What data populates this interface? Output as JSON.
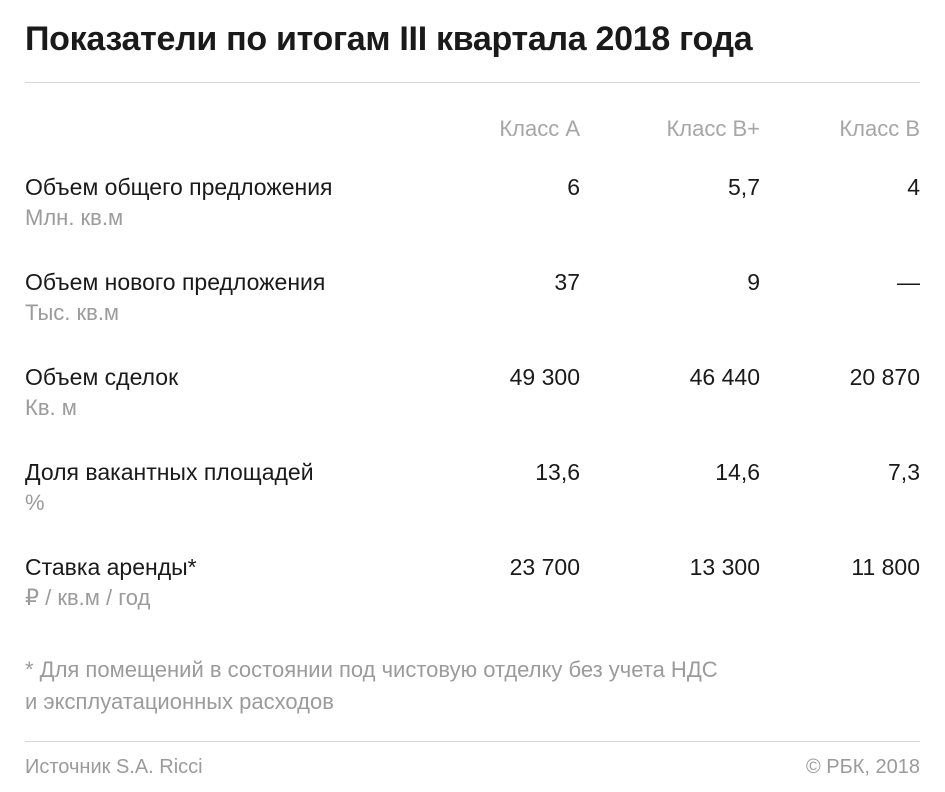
{
  "title": "Показатели по итогам III квартала 2018 года",
  "chart_data": {
    "type": "table",
    "title": "Показатели по итогам III квартала 2018 года",
    "columns": [
      "Класс А",
      "Класс В+",
      "Класс В"
    ],
    "rows": [
      {
        "label": "Объем общего предложения",
        "unit": "Млн. кв.м",
        "values": [
          "6",
          "5,7",
          "4"
        ]
      },
      {
        "label": "Объем нового предложения",
        "unit": "Тыс. кв.м",
        "values": [
          "37",
          "9",
          "—"
        ]
      },
      {
        "label": "Объем сделок",
        "unit": "Кв. м",
        "values": [
          "49 300",
          "46 440",
          "20 870"
        ]
      },
      {
        "label": "Доля вакантных площадей",
        "unit": "%",
        "values": [
          "13,6",
          "14,6",
          "7,3"
        ]
      },
      {
        "label": "Ставка аренды*",
        "unit": "₽ / кв.м / год",
        "values": [
          "23 700",
          "13 300",
          "11 800"
        ]
      }
    ]
  },
  "footnote_line1": "* Для помещений в состоянии под чистовую отделку без учета НДС",
  "footnote_line2": "и эксплуатационных расходов",
  "source": "Источник S.A. Ricci",
  "copyright": "© РБК, 2018"
}
